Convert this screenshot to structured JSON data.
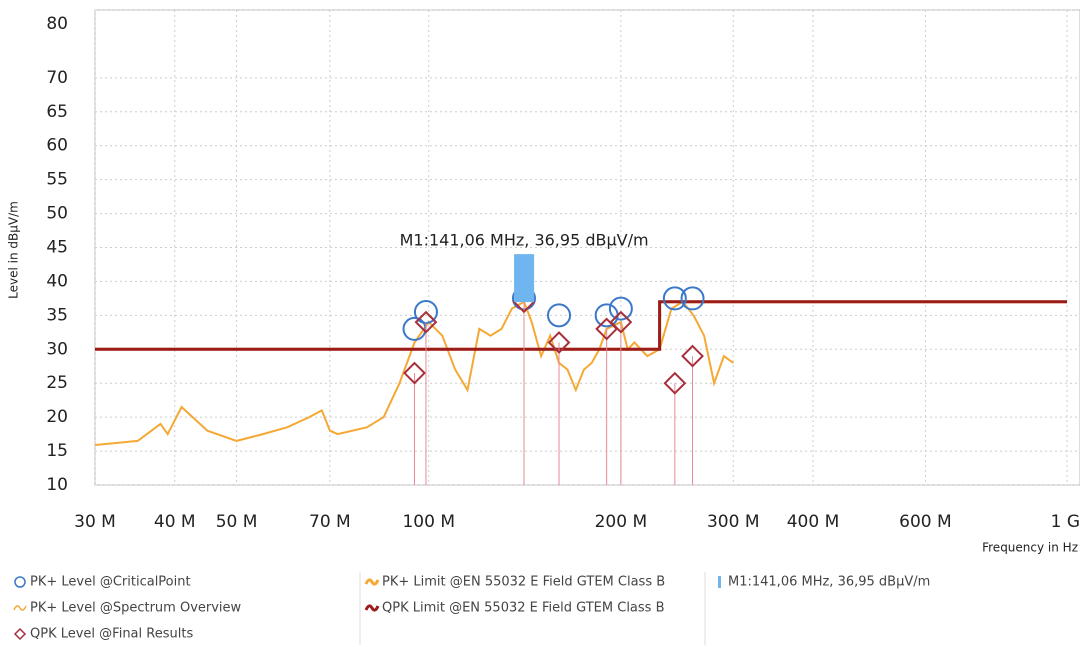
{
  "chart_data": {
    "type": "line",
    "y_label": "Level in dBµV/m",
    "x_label": "Frequency in Hz",
    "log_x": true,
    "grid": true,
    "xlim": [
      30,
      1000
    ],
    "xticks": [
      {
        "value": 30,
        "label": "30 M"
      },
      {
        "value": 40,
        "label": "40 M"
      },
      {
        "value": 50,
        "label": "50 M"
      },
      {
        "value": 70,
        "label": "70 M"
      },
      {
        "value": 100,
        "label": "100 M"
      },
      {
        "value": 200,
        "label": "200 M"
      },
      {
        "value": 300,
        "label": "300 M"
      },
      {
        "value": 400,
        "label": "400 M"
      },
      {
        "value": 600,
        "label": "600 M"
      },
      {
        "value": 1000,
        "label": "1 G"
      }
    ],
    "ylim": [
      10,
      80
    ],
    "yticks": [
      10,
      15,
      20,
      25,
      30,
      35,
      40,
      45,
      50,
      55,
      60,
      65,
      70,
      80
    ],
    "series": [
      {
        "name": "PK+ Level @Spectrum Overview",
        "color": "#f5a834",
        "kind": "line",
        "x": [
          30,
          35,
          38,
          39,
          41,
          45,
          50,
          55,
          60,
          65,
          68,
          70,
          72,
          80,
          85,
          90,
          95,
          100,
          105,
          110,
          115,
          120,
          125,
          130,
          135,
          141,
          145,
          150,
          155,
          160,
          165,
          170,
          175,
          180,
          185,
          190,
          200,
          205,
          210,
          220,
          230,
          240,
          250,
          260,
          270,
          280,
          290,
          300
        ],
        "values": [
          15.9,
          16.5,
          19,
          17.5,
          21.5,
          18,
          16.5,
          17.5,
          18.5,
          20,
          21,
          18,
          17.5,
          18.5,
          20,
          25,
          31,
          34,
          32,
          27,
          24,
          33,
          32,
          33,
          36,
          37,
          34,
          29,
          32,
          28,
          27,
          24,
          27,
          28,
          30,
          33,
          34,
          30,
          31,
          29,
          30,
          36,
          37,
          35,
          32,
          25,
          29,
          28
        ]
      },
      {
        "name": "PK+ Limit @EN 55032 E Field GTEM Class B",
        "color": "#f5a834",
        "kind": "line",
        "x": [
          30,
          230,
          230,
          1000
        ],
        "values": [
          30,
          30,
          37,
          37
        ]
      },
      {
        "name": "QPK Limit @EN 55032 E Field GTEM Class B",
        "color": "#9b1c1c",
        "kind": "line",
        "x": [
          30,
          230,
          230,
          1000
        ],
        "values": [
          30,
          30,
          37,
          37
        ]
      },
      {
        "name": "PK+ Level @CriticalPoint",
        "color": "#3a78c9",
        "kind": "circle",
        "x": [
          95,
          99,
          141,
          160,
          190,
          200,
          243,
          259
        ],
        "values": [
          33,
          35.5,
          37.5,
          35,
          35,
          36,
          37.5,
          37.5
        ]
      },
      {
        "name": "QPK Level @Final Results",
        "color": "#a8303c",
        "kind": "diamond",
        "x": [
          95,
          99,
          141,
          160,
          190,
          200,
          243,
          259
        ],
        "values": [
          26.5,
          34,
          37,
          31,
          33,
          34,
          25,
          29
        ]
      }
    ],
    "marker": {
      "label": "M1:141,06 MHz, 36,95 dBµV/m",
      "x": 141.06,
      "value": 36.95,
      "color": "#6fb6f0"
    }
  }
}
